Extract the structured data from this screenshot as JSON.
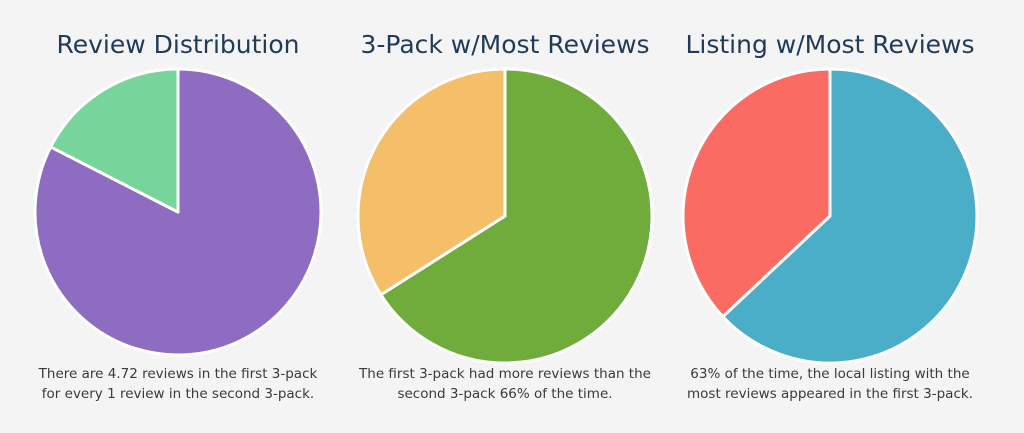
{
  "chart_data": [
    {
      "type": "pie",
      "title": "Review Distribution",
      "values": [
        4.72,
        1
      ],
      "colors": [
        "#8e6cc1",
        "#77d49a"
      ],
      "caption": [
        "There are 4.72 reviews in the first 3-pack",
        "for every 1 review in the second 3-pack."
      ]
    },
    {
      "type": "pie",
      "title": "3-Pack w/Most Reviews",
      "values": [
        66,
        34
      ],
      "colors": [
        "#6fac3c",
        "#f5be69"
      ],
      "caption": [
        "The first 3-pack had more reviews than the",
        "second 3-pack 66% of the time."
      ]
    },
    {
      "type": "pie",
      "title": "Listing w/Most Reviews",
      "values": [
        63,
        37
      ],
      "colors": [
        "#4aaec8",
        "#f96b63"
      ],
      "caption": [
        "63% of the time, the local listing with the",
        "most reviews appeared in the first 3-pack."
      ]
    }
  ]
}
